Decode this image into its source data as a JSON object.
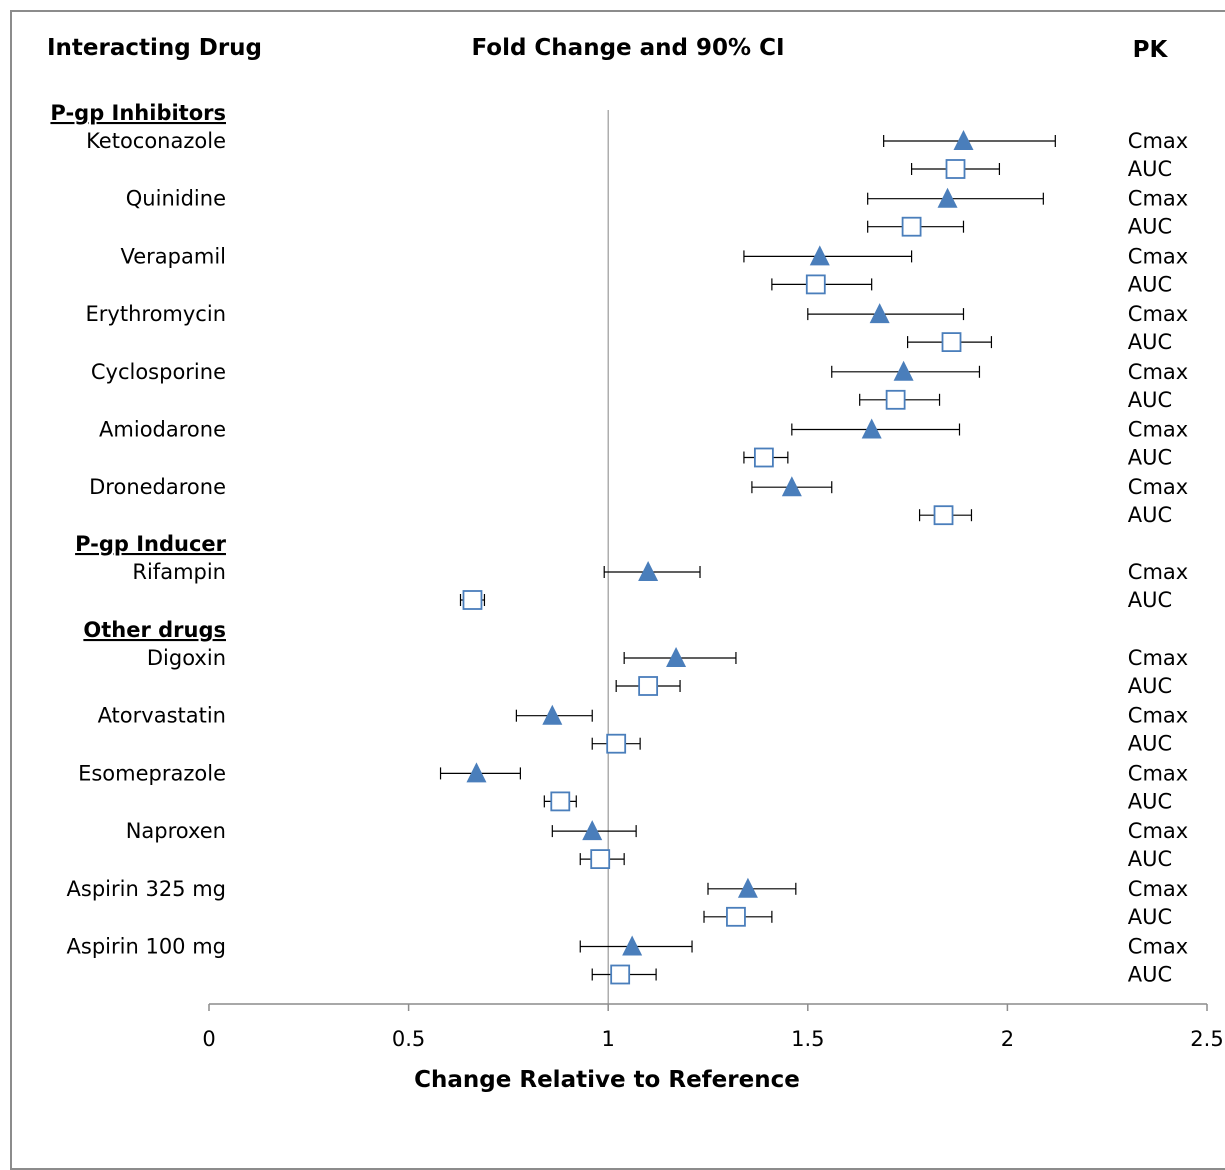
{
  "headers": {
    "drug": "Interacting Drug",
    "center": "Fold Change and 90% CI",
    "pk": "PK"
  },
  "chart_data": {
    "type": "forest",
    "title": "Fold Change and 90% CI",
    "xlabel": "Change Relative to Reference",
    "xlim": [
      0,
      2.5
    ],
    "xticks": [
      0,
      0.5,
      1,
      1.5,
      2,
      2.5
    ],
    "xtick_labels": [
      "0",
      "0.5",
      "1",
      "1.5",
      "2",
      "2.5"
    ],
    "reference_line": 1,
    "marker_colors": {
      "Cmax": "#4a7ebb",
      "AUC": "#4a7ebb"
    },
    "groups": [
      {
        "name": "P-gp Inhibitors",
        "drugs": [
          {
            "name": "Ketoconazole",
            "Cmax": {
              "est": 1.89,
              "lo": 1.69,
              "hi": 2.12
            },
            "AUC": {
              "est": 1.87,
              "lo": 1.76,
              "hi": 1.98
            }
          },
          {
            "name": "Quinidine",
            "Cmax": {
              "est": 1.85,
              "lo": 1.65,
              "hi": 2.09
            },
            "AUC": {
              "est": 1.76,
              "lo": 1.65,
              "hi": 1.89
            }
          },
          {
            "name": "Verapamil",
            "Cmax": {
              "est": 1.53,
              "lo": 1.34,
              "hi": 1.76
            },
            "AUC": {
              "est": 1.52,
              "lo": 1.41,
              "hi": 1.66
            }
          },
          {
            "name": "Erythromycin",
            "Cmax": {
              "est": 1.68,
              "lo": 1.5,
              "hi": 1.89
            },
            "AUC": {
              "est": 1.86,
              "lo": 1.75,
              "hi": 1.96
            }
          },
          {
            "name": "Cyclosporine",
            "Cmax": {
              "est": 1.74,
              "lo": 1.56,
              "hi": 1.93
            },
            "AUC": {
              "est": 1.72,
              "lo": 1.63,
              "hi": 1.83
            }
          },
          {
            "name": "Amiodarone",
            "Cmax": {
              "est": 1.66,
              "lo": 1.46,
              "hi": 1.88
            },
            "AUC": {
              "est": 1.39,
              "lo": 1.34,
              "hi": 1.45
            }
          },
          {
            "name": "Dronedarone",
            "Cmax": {
              "est": 1.46,
              "lo": 1.36,
              "hi": 1.56
            },
            "AUC": {
              "est": 1.84,
              "lo": 1.78,
              "hi": 1.91
            }
          }
        ]
      },
      {
        "name": "P-gp Inducer",
        "drugs": [
          {
            "name": "Rifampin",
            "Cmax": {
              "est": 1.1,
              "lo": 0.99,
              "hi": 1.23
            },
            "AUC": {
              "est": 0.66,
              "lo": 0.63,
              "hi": 0.69
            }
          }
        ]
      },
      {
        "name": "Other drugs",
        "drugs": [
          {
            "name": "Digoxin",
            "Cmax": {
              "est": 1.17,
              "lo": 1.04,
              "hi": 1.32
            },
            "AUC": {
              "est": 1.1,
              "lo": 1.02,
              "hi": 1.18
            }
          },
          {
            "name": "Atorvastatin",
            "Cmax": {
              "est": 0.86,
              "lo": 0.77,
              "hi": 0.96
            },
            "AUC": {
              "est": 1.02,
              "lo": 0.96,
              "hi": 1.08
            }
          },
          {
            "name": "Esomeprazole",
            "Cmax": {
              "est": 0.67,
              "lo": 0.58,
              "hi": 0.78
            },
            "AUC": {
              "est": 0.88,
              "lo": 0.84,
              "hi": 0.92
            }
          },
          {
            "name": "Naproxen",
            "Cmax": {
              "est": 0.96,
              "lo": 0.86,
              "hi": 1.07
            },
            "AUC": {
              "est": 0.98,
              "lo": 0.93,
              "hi": 1.04
            }
          },
          {
            "name": "Aspirin 325 mg",
            "Cmax": {
              "est": 1.35,
              "lo": 1.25,
              "hi": 1.47
            },
            "AUC": {
              "est": 1.32,
              "lo": 1.24,
              "hi": 1.41
            }
          },
          {
            "name": "Aspirin 100 mg",
            "Cmax": {
              "est": 1.06,
              "lo": 0.93,
              "hi": 1.21
            },
            "AUC": {
              "est": 1.03,
              "lo": 0.96,
              "hi": 1.12
            }
          }
        ]
      }
    ]
  }
}
